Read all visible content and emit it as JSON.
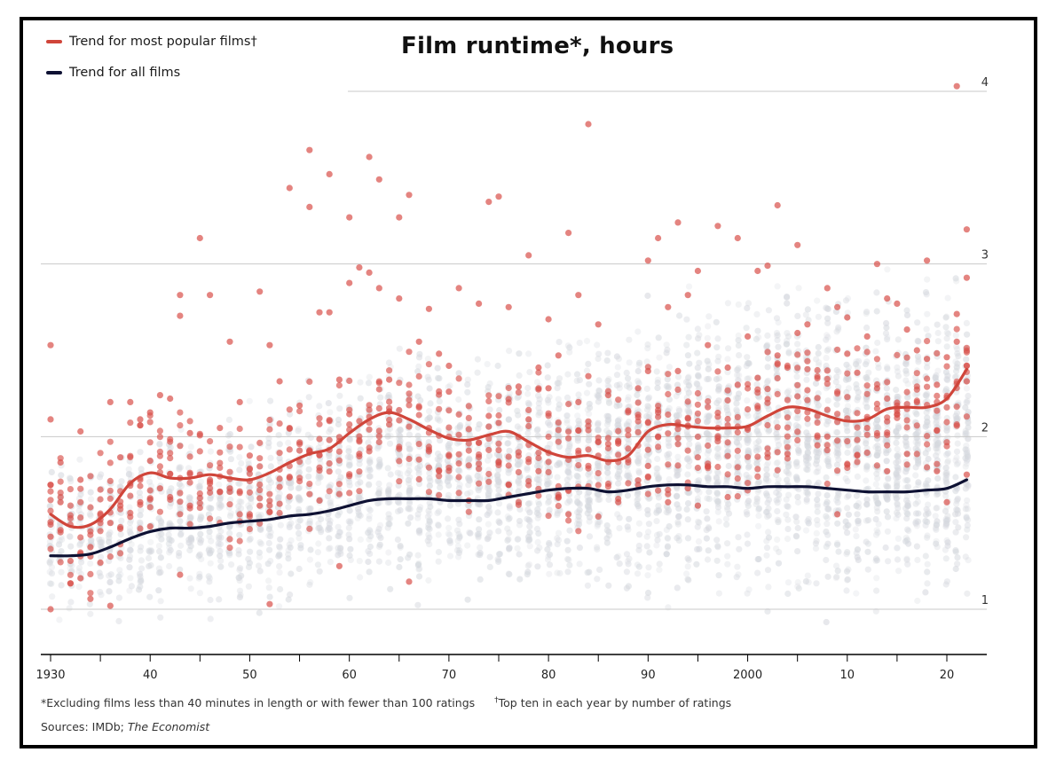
{
  "chart_data": {
    "type": "scatter",
    "title": "Film runtime*, hours",
    "xlim": [
      1930,
      2023
    ],
    "ylim": [
      0.75,
      4.1
    ],
    "x_ticks": [
      1930,
      1940,
      1950,
      1960,
      1970,
      1980,
      1990,
      2000,
      2010,
      2020
    ],
    "x_tick_labels": [
      "1930",
      "40",
      "50",
      "60",
      "70",
      "80",
      "90",
      "2000",
      "10",
      "20"
    ],
    "y_ticks": [
      1,
      2,
      3,
      4
    ],
    "y_tick_labels": [
      "1",
      "2",
      "3",
      "4"
    ],
    "gridlines": "horizontal",
    "legend_position": "top-left",
    "series": [
      {
        "name": "Trend for most popular films†",
        "kind": "line",
        "color": "#d0453a",
        "x": [
          1930,
          1932,
          1934,
          1936,
          1938,
          1940,
          1942,
          1944,
          1946,
          1948,
          1950,
          1952,
          1954,
          1956,
          1958,
          1960,
          1962,
          1964,
          1966,
          1968,
          1970,
          1972,
          1974,
          1976,
          1978,
          1980,
          1982,
          1984,
          1986,
          1988,
          1990,
          1992,
          1994,
          1996,
          1998,
          2000,
          2002,
          2004,
          2006,
          2008,
          2010,
          2012,
          2014,
          2016,
          2018,
          2020,
          2022
        ],
        "y": [
          1.55,
          1.48,
          1.49,
          1.58,
          1.73,
          1.79,
          1.76,
          1.76,
          1.78,
          1.76,
          1.75,
          1.79,
          1.85,
          1.9,
          1.93,
          2.02,
          2.1,
          2.14,
          2.1,
          2.04,
          1.99,
          1.98,
          2.01,
          2.03,
          1.97,
          1.91,
          1.88,
          1.89,
          1.86,
          1.89,
          2.03,
          2.07,
          2.06,
          2.05,
          2.05,
          2.06,
          2.12,
          2.17,
          2.16,
          2.12,
          2.09,
          2.1,
          2.16,
          2.17,
          2.17,
          2.22,
          2.39
        ]
      },
      {
        "name": "Trend for all films",
        "kind": "line",
        "color": "#0e1133",
        "x": [
          1930,
          1932,
          1934,
          1936,
          1938,
          1940,
          1942,
          1944,
          1946,
          1948,
          1950,
          1952,
          1954,
          1956,
          1958,
          1960,
          1962,
          1964,
          1966,
          1968,
          1970,
          1972,
          1974,
          1976,
          1978,
          1980,
          1982,
          1984,
          1986,
          1988,
          1990,
          1992,
          1994,
          1996,
          1998,
          2000,
          2002,
          2004,
          2006,
          2008,
          2010,
          2012,
          2014,
          2016,
          2018,
          2020,
          2022
        ],
        "y": [
          1.31,
          1.31,
          1.32,
          1.36,
          1.41,
          1.45,
          1.47,
          1.47,
          1.48,
          1.5,
          1.51,
          1.52,
          1.54,
          1.55,
          1.57,
          1.6,
          1.63,
          1.64,
          1.64,
          1.64,
          1.63,
          1.63,
          1.63,
          1.65,
          1.67,
          1.69,
          1.7,
          1.7,
          1.68,
          1.69,
          1.71,
          1.72,
          1.72,
          1.71,
          1.71,
          1.7,
          1.71,
          1.71,
          1.71,
          1.7,
          1.69,
          1.68,
          1.68,
          1.68,
          1.69,
          1.7,
          1.75
        ]
      },
      {
        "name": "",
        "kind": "points",
        "description": "top ten films per year",
        "color": "#d9504a",
        "points": [
          [
            1930,
            2.53
          ],
          [
            1930,
            2.1
          ],
          [
            1930,
            1.72
          ],
          [
            1930,
            1.42
          ],
          [
            1930,
            1.0
          ],
          [
            1931,
            1.85
          ],
          [
            1931,
            1.62
          ],
          [
            1932,
            1.28
          ],
          [
            1932,
            1.15
          ],
          [
            1933,
            2.03
          ],
          [
            1933,
            1.75
          ],
          [
            1933,
            1.18
          ],
          [
            1934,
            1.36
          ],
          [
            1934,
            1.06
          ],
          [
            1935,
            1.52
          ],
          [
            1935,
            1.27
          ],
          [
            1936,
            2.2
          ],
          [
            1936,
            1.5
          ],
          [
            1936,
            1.02
          ],
          [
            1937,
            1.88
          ],
          [
            1937,
            1.6
          ],
          [
            1938,
            2.2
          ],
          [
            1938,
            1.73
          ],
          [
            1939,
            2.1
          ],
          [
            1939,
            1.62
          ],
          [
            1940,
            2.14
          ],
          [
            1940,
            1.86
          ],
          [
            1940,
            1.48
          ],
          [
            1941,
            2.24
          ],
          [
            1941,
            1.7
          ],
          [
            1942,
            2.22
          ],
          [
            1942,
            1.65
          ],
          [
            1943,
            2.82
          ],
          [
            1943,
            2.7
          ],
          [
            1943,
            1.2
          ],
          [
            1944,
            2.02
          ],
          [
            1944,
            1.6
          ],
          [
            1945,
            3.15
          ],
          [
            1945,
            1.78
          ],
          [
            1946,
            2.82
          ],
          [
            1946,
            1.75
          ],
          [
            1947,
            2.05
          ],
          [
            1948,
            2.55
          ],
          [
            1948,
            1.7
          ],
          [
            1949,
            2.2
          ],
          [
            1950,
            1.89
          ],
          [
            1950,
            1.55
          ],
          [
            1951,
            2.84
          ],
          [
            1951,
            1.6
          ],
          [
            1952,
            2.53
          ],
          [
            1952,
            1.03
          ],
          [
            1953,
            2.32
          ],
          [
            1954,
            3.44
          ],
          [
            1954,
            2.05
          ],
          [
            1955,
            2.18
          ],
          [
            1956,
            3.66
          ],
          [
            1956,
            3.33
          ],
          [
            1956,
            1.92
          ],
          [
            1957,
            2.72
          ],
          [
            1957,
            1.63
          ],
          [
            1958,
            3.52
          ],
          [
            1958,
            2.72
          ],
          [
            1959,
            2.33
          ],
          [
            1959,
            1.25
          ],
          [
            1960,
            3.27
          ],
          [
            1960,
            2.89
          ],
          [
            1960,
            2.13
          ],
          [
            1961,
            2.98
          ],
          [
            1961,
            1.9
          ],
          [
            1962,
            3.62
          ],
          [
            1962,
            2.95
          ],
          [
            1963,
            3.49
          ],
          [
            1963,
            2.86
          ],
          [
            1964,
            2.33
          ],
          [
            1965,
            3.27
          ],
          [
            1965,
            2.8
          ],
          [
            1966,
            3.4
          ],
          [
            1966,
            1.16
          ],
          [
            1967,
            2.55
          ],
          [
            1968,
            2.74
          ],
          [
            1968,
            2.05
          ],
          [
            1969,
            2.48
          ],
          [
            1969,
            1.8
          ],
          [
            1970,
            2.41
          ],
          [
            1970,
            2.26
          ],
          [
            1971,
            2.86
          ],
          [
            1972,
            1.63
          ],
          [
            1973,
            2.77
          ],
          [
            1974,
            3.36
          ],
          [
            1974,
            2.12
          ],
          [
            1975,
            3.39
          ],
          [
            1975,
            2.08
          ],
          [
            1976,
            2.75
          ],
          [
            1976,
            1.72
          ],
          [
            1977,
            2.29
          ],
          [
            1978,
            3.05
          ],
          [
            1978,
            2.1
          ],
          [
            1979,
            2.4
          ],
          [
            1979,
            1.8
          ],
          [
            1980,
            2.68
          ],
          [
            1980,
            2.28
          ],
          [
            1981,
            2.47
          ],
          [
            1981,
            1.65
          ],
          [
            1982,
            3.18
          ],
          [
            1982,
            1.55
          ],
          [
            1983,
            2.82
          ],
          [
            1983,
            2.2
          ],
          [
            1984,
            3.81
          ],
          [
            1984,
            2.35
          ],
          [
            1985,
            2.65
          ],
          [
            1986,
            2.24
          ],
          [
            1987,
            1.96
          ],
          [
            1987,
            1.62
          ],
          [
            1988,
            2.15
          ],
          [
            1989,
            2.28
          ],
          [
            1989,
            1.72
          ],
          [
            1990,
            3.02
          ],
          [
            1990,
            2.38
          ],
          [
            1990,
            1.83
          ],
          [
            1991,
            3.15
          ],
          [
            1991,
            2.0
          ],
          [
            1992,
            2.75
          ],
          [
            1992,
            1.62
          ],
          [
            1993,
            3.24
          ],
          [
            1993,
            2.38
          ],
          [
            1994,
            2.82
          ],
          [
            1994,
            1.7
          ],
          [
            1995,
            2.96
          ],
          [
            1995,
            1.6
          ],
          [
            1996,
            2.53
          ],
          [
            1997,
            3.22
          ],
          [
            1997,
            2.05
          ],
          [
            1998,
            2.4
          ],
          [
            1998,
            1.65
          ],
          [
            1999,
            3.15
          ],
          [
            1999,
            2.3
          ],
          [
            2000,
            2.58
          ],
          [
            2000,
            2.04
          ],
          [
            2001,
            2.96
          ],
          [
            2001,
            2.34
          ],
          [
            2002,
            2.99
          ],
          [
            2002,
            1.88
          ],
          [
            2003,
            3.34
          ],
          [
            2003,
            2.47
          ],
          [
            2004,
            2.4
          ],
          [
            2004,
            1.9
          ],
          [
            2005,
            3.11
          ],
          [
            2005,
            2.6
          ],
          [
            2006,
            2.65
          ],
          [
            2007,
            2.12
          ],
          [
            2007,
            1.95
          ],
          [
            2008,
            2.86
          ],
          [
            2008,
            2.0
          ],
          [
            2009,
            2.75
          ],
          [
            2009,
            1.55
          ],
          [
            2010,
            2.69
          ],
          [
            2010,
            2.48
          ],
          [
            2011,
            2.37
          ],
          [
            2012,
            2.58
          ],
          [
            2012,
            2.05
          ],
          [
            2013,
            3.0
          ],
          [
            2013,
            2.28
          ],
          [
            2014,
            2.8
          ],
          [
            2014,
            1.8
          ],
          [
            2015,
            2.77
          ],
          [
            2015,
            2.18
          ],
          [
            2016,
            2.62
          ],
          [
            2016,
            1.9
          ],
          [
            2017,
            2.5
          ],
          [
            2018,
            3.02
          ],
          [
            2018,
            2.45
          ],
          [
            2019,
            2.3
          ],
          [
            2019,
            1.8
          ],
          [
            2020,
            2.46
          ],
          [
            2020,
            1.62
          ],
          [
            2021,
            4.03
          ],
          [
            2021,
            2.71
          ],
          [
            2021,
            2.55
          ],
          [
            2022,
            3.2
          ],
          [
            2022,
            2.92
          ],
          [
            2022,
            2.32
          ],
          [
            2022,
            1.78
          ]
        ]
      }
    ],
    "background_points": {
      "description": "all films (faint grey dots)",
      "color": "#d5d8de",
      "per_year": [
        [
          1930,
          0.85,
          1.85
        ],
        [
          1932,
          0.85,
          1.9
        ],
        [
          1934,
          0.85,
          1.9
        ],
        [
          1936,
          0.85,
          1.95
        ],
        [
          1938,
          0.85,
          2.0
        ],
        [
          1940,
          0.85,
          2.05
        ],
        [
          1942,
          0.85,
          2.1
        ],
        [
          1944,
          0.85,
          2.1
        ],
        [
          1946,
          0.85,
          2.1
        ],
        [
          1948,
          0.85,
          2.15
        ],
        [
          1950,
          0.88,
          2.2
        ],
        [
          1952,
          0.88,
          2.25
        ],
        [
          1954,
          0.88,
          2.3
        ],
        [
          1956,
          0.9,
          2.35
        ],
        [
          1958,
          0.9,
          2.4
        ],
        [
          1960,
          0.9,
          2.45
        ],
        [
          1962,
          0.9,
          2.55
        ],
        [
          1964,
          0.9,
          2.6
        ],
        [
          1966,
          0.9,
          2.6
        ],
        [
          1968,
          0.9,
          2.6
        ],
        [
          1970,
          0.9,
          2.55
        ],
        [
          1972,
          0.9,
          2.55
        ],
        [
          1974,
          0.9,
          2.55
        ],
        [
          1976,
          0.9,
          2.6
        ],
        [
          1978,
          0.88,
          2.65
        ],
        [
          1980,
          0.88,
          2.7
        ],
        [
          1982,
          0.88,
          2.7
        ],
        [
          1984,
          0.88,
          2.75
        ],
        [
          1986,
          0.85,
          2.8
        ],
        [
          1988,
          0.85,
          2.85
        ],
        [
          1990,
          0.85,
          2.9
        ],
        [
          1992,
          0.85,
          2.95
        ],
        [
          1994,
          0.85,
          2.95
        ],
        [
          1996,
          0.85,
          2.95
        ],
        [
          1998,
          0.85,
          2.95
        ],
        [
          2000,
          0.85,
          2.95
        ],
        [
          2002,
          0.85,
          2.95
        ],
        [
          2004,
          0.85,
          2.95
        ],
        [
          2006,
          0.85,
          2.95
        ],
        [
          2008,
          0.82,
          2.95
        ],
        [
          2010,
          0.82,
          2.95
        ],
        [
          2012,
          0.82,
          2.95
        ],
        [
          2014,
          0.82,
          2.95
        ],
        [
          2016,
          0.82,
          2.95
        ],
        [
          2018,
          0.82,
          2.95
        ],
        [
          2020,
          0.82,
          2.95
        ],
        [
          2022,
          0.82,
          2.9
        ]
      ]
    }
  },
  "legend": [
    {
      "label": "Trend for most popular films†",
      "color": "#d0453a"
    },
    {
      "label": "Trend for all films",
      "color": "#0e1133"
    }
  ],
  "footnotes": {
    "exclusion": "*Excluding films less than 40 minutes in length or with fewer than 100 ratings",
    "dagger_mark": "†",
    "top_ten": "Top ten in each year by number of ratings",
    "sources_prefix": "Sources: IMDb; ",
    "sources_publication": "The Economist"
  }
}
